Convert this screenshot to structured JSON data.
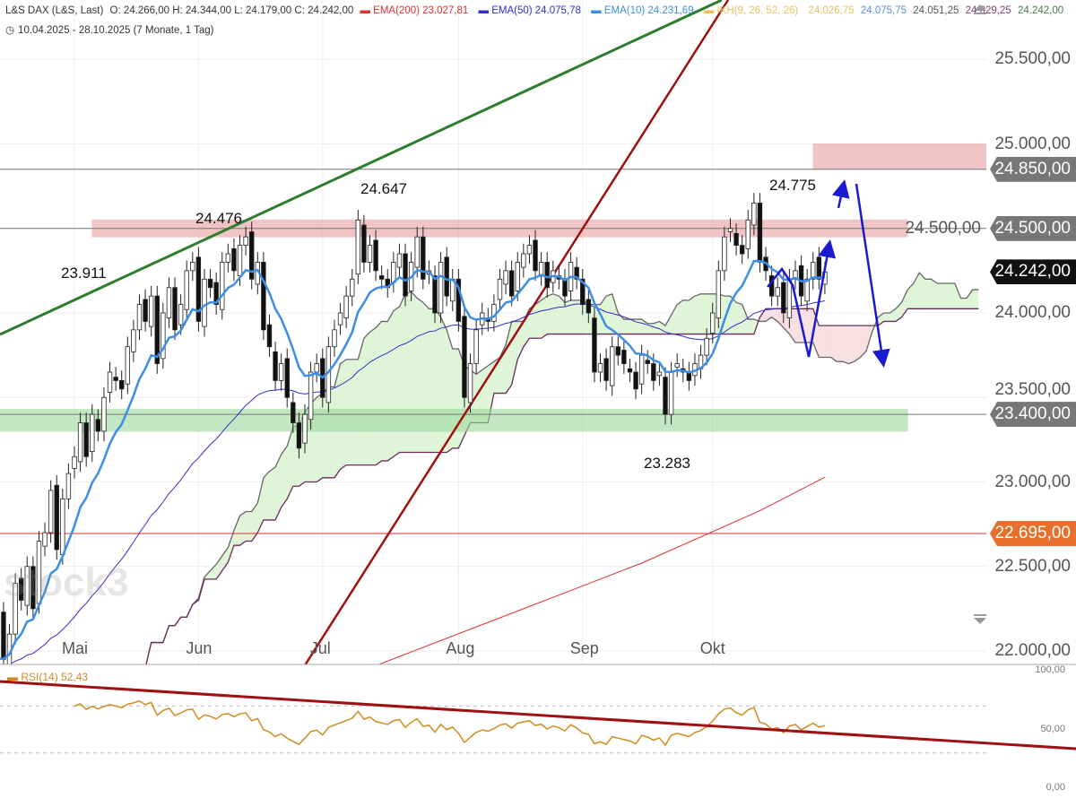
{
  "header": {
    "symbol": "L&S DAX (L&S, Last)",
    "ohlc": "O: 24.266,00  H: 24.344,00  L: 24.179,00  C: 24.242,00",
    "ema200": "EMA(200)  23.027,81",
    "ema50": "EMA(50)  24.075,78",
    "ema10": "EMA(10)  24.231,69",
    "ikh": "IKH(9, 26, 52, 26)",
    "ikh_v1": "24.026,75",
    "ikh_v2": "24.075,75",
    "ikh_v3": "24.051,25",
    "ikh_v4": "24.029,25",
    "ikh_v5": "24.242,00",
    "range": "10.04.2025 - 28.10.2025  (7 Monate, 1 Tag)"
  },
  "rsi_label": "RSI(14)  52,43",
  "watermark": "stock3",
  "colors": {
    "ema200": "#e03030",
    "ema50": "#3030c8",
    "ema10": "#3a8ee6",
    "ikh": "#e8c060",
    "rsi": "#d08a20",
    "zone_red": "#e8a0a0",
    "zone_green": "#9ad89a",
    "trend_green": "#2e7d2e",
    "trend_red": "#a01010",
    "current_box": "#111111",
    "level_box": "#777777",
    "ema200_box": "#e8702a"
  },
  "chart_data": {
    "type": "candlestick",
    "x_ticks": [
      "Mai",
      "Jun",
      "Jul",
      "Aug",
      "Sep",
      "Okt"
    ],
    "x_tick_index": [
      14,
      35,
      56,
      79,
      100,
      122
    ],
    "y_ticks": [
      "25.500,00",
      "25.000,00",
      "24.500,00",
      "24.000,00",
      "23.500,00",
      "23.000,00",
      "22.500,00",
      "22.000,00"
    ],
    "y_tick_values": [
      25500,
      25000,
      24500,
      24000,
      23500,
      23000,
      22500,
      22000
    ],
    "ylim": [
      22000,
      25800
    ],
    "closes": [
      21900,
      22200,
      21950,
      22100,
      22400,
      22300,
      22500,
      22250,
      22650,
      22700,
      22950,
      22600,
      22900,
      23050,
      23150,
      23350,
      23150,
      23400,
      23300,
      23500,
      23650,
      23600,
      23550,
      23800,
      23900,
      24050,
      23950,
      24100,
      23700,
      24000,
      24150,
      23900,
      24050,
      24250,
      24300,
      23950,
      24200,
      24150,
      24050,
      24300,
      24350,
      24250,
      24400,
      24450,
      24200,
      24300,
      23900,
      23800,
      23600,
      23700,
      23500,
      23350,
      23200,
      23400,
      23650,
      23700,
      23500,
      23800,
      23900,
      24000,
      24100,
      24200,
      24550,
      24300,
      24400,
      24250,
      24200,
      24150,
      24300,
      24350,
      24100,
      24300,
      24450,
      24200,
      24250,
      24000,
      24300,
      24100,
      24200,
      23950,
      23500,
      23700,
      23900,
      24000,
      23950,
      24050,
      24200,
      24250,
      24100,
      24300,
      24350,
      24400,
      24250,
      24300,
      24150,
      24250,
      24200,
      24100,
      24300,
      24200,
      24050,
      24000,
      23650,
      23700,
      23600,
      23800,
      23750,
      23700,
      23650,
      23550,
      23750,
      23700,
      23600,
      23650,
      23400,
      23650,
      23700,
      23650,
      23600,
      23700,
      23750,
      23850,
      24000,
      24250,
      24450,
      24500,
      24400,
      24350,
      24550,
      24650,
      24300,
      24250,
      24100,
      24150,
      24000,
      24200,
      24250,
      24100,
      24200,
      24300,
      24200,
      24242
    ],
    "ema200_points": [
      [
        64,
        21900
      ],
      [
        90,
        22250
      ],
      [
        110,
        22520
      ],
      [
        130,
        22830
      ],
      [
        141,
        23028
      ]
    ],
    "levels": [
      {
        "value": 24850,
        "label": "24.850,00",
        "color": "#777777"
      },
      {
        "value": 24500,
        "label": "24.500,00",
        "color": "#777777"
      },
      {
        "value": 24242,
        "label": "24.242,00",
        "color": "#111111"
      },
      {
        "value": 23400,
        "label": "23.400,00",
        "color": "#777777"
      },
      {
        "value": 22695,
        "label": "22.695,00",
        "color": "#e8702a"
      }
    ],
    "zones": [
      {
        "from": 24450,
        "to": 24550,
        "color": "#e8a0a0"
      },
      {
        "from": 24850,
        "to": 25000,
        "color": "#e8a0a0"
      },
      {
        "from": 23300,
        "to": 23430,
        "color": "#9ad89a"
      }
    ],
    "annotations": [
      {
        "text": "23.911"
      },
      {
        "text": "24.476"
      },
      {
        "text": "24.647"
      },
      {
        "text": "24.775"
      },
      {
        "text": "23.283"
      }
    ],
    "rsi": {
      "ylim": [
        0,
        100
      ],
      "ticks": [
        "100,00",
        "50,00",
        "0,00"
      ],
      "tick_values": [
        100,
        50,
        0
      ],
      "bands": [
        70,
        30
      ]
    }
  }
}
